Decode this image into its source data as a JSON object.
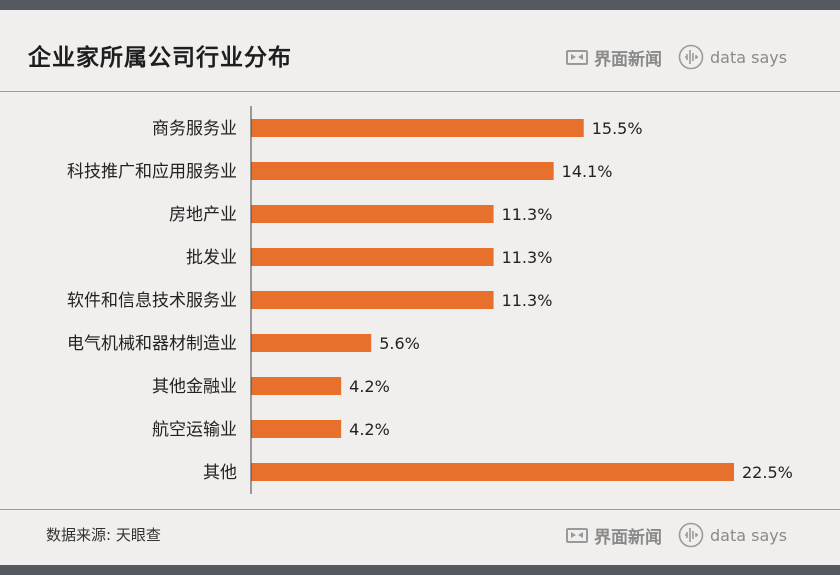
{
  "title": "企业家所属公司行业分布",
  "brand": {
    "jiemian": "界面新闻",
    "datasays": "data says"
  },
  "source": "数据来源: 天眼查",
  "colors": {
    "bar": "#e8702d",
    "background": "#f1efed",
    "frame": "#555a60",
    "axis": "#444444"
  },
  "chart_data": {
    "type": "bar",
    "orientation": "horizontal",
    "title": "企业家所属公司行业分布",
    "categories": [
      "商务服务业",
      "科技推广和应用服务业",
      "房地产业",
      "批发业",
      "软件和信息技术服务业",
      "电气机械和器材制造业",
      "其他金融业",
      "航空运输业",
      "其他"
    ],
    "values": [
      15.5,
      14.1,
      11.3,
      11.3,
      11.3,
      5.6,
      4.2,
      4.2,
      22.5
    ],
    "value_labels": [
      "15.5%",
      "14.1%",
      "11.3%",
      "11.3%",
      "11.3%",
      "5.6%",
      "4.2%",
      "4.2%",
      "22.5%"
    ],
    "xlim": [
      0,
      22.5
    ],
    "grid": false,
    "legend": "none"
  }
}
